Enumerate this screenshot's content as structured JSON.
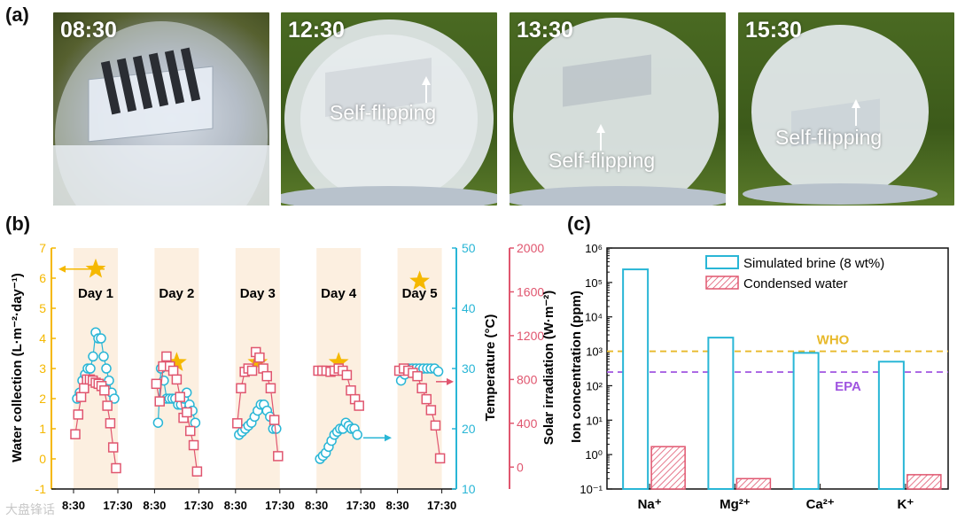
{
  "panel_labels": {
    "a": "(a)",
    "b": "(b)",
    "c": "(c)"
  },
  "photos": [
    {
      "time": "08:30",
      "flip_label": ""
    },
    {
      "time": "12:30",
      "flip_label": "Self-flipping"
    },
    {
      "time": "13:30",
      "flip_label": "Self-flipping"
    },
    {
      "time": "15:30",
      "flip_label": "Self-flipping"
    }
  ],
  "chart_data": [
    {
      "type": "scatter",
      "title": "",
      "ylabel_left": "Water collection (L·m⁻²·day⁻¹)",
      "ylabel_mid": "Temperature (°C)",
      "ylabel_right": "Solar irradiation (W·m⁻²)",
      "ylim_left": [
        -1,
        7
      ],
      "yticks_left": [
        "-1",
        "0",
        "1",
        "2",
        "3",
        "4",
        "5",
        "6",
        "7"
      ],
      "ylim_temp": [
        10,
        50
      ],
      "yticks_temp": [
        "10",
        "20",
        "30",
        "40",
        "50"
      ],
      "ylim_solar": [
        -200,
        2000
      ],
      "yticks_solar": [
        "0",
        "400",
        "800",
        "1200",
        "1600",
        "2000"
      ],
      "xtick_labels": [
        "8:30",
        "17:30",
        "8:30",
        "17:30",
        "8:30",
        "17:30",
        "8:30",
        "17:30",
        "8:30",
        "17:30"
      ],
      "colors": {
        "water": "#f5b800",
        "temp": "#29b6d6",
        "solar": "#e0566f",
        "shade": "#fcefe0"
      },
      "days": [
        {
          "label": "Day 1",
          "water": 6.3,
          "temp": [
            25,
            26,
            28,
            29,
            30,
            30,
            32,
            36,
            35,
            35,
            32,
            30,
            28,
            26,
            25
          ],
          "solar": [
            300,
            480,
            640,
            720,
            800,
            800,
            790,
            770,
            760,
            740,
            700,
            560,
            400,
            180,
            -10
          ]
        },
        {
          "label": "Day 2",
          "water": 3.2,
          "temp": [
            21,
            30,
            28,
            25,
            25,
            25,
            25,
            24,
            24,
            25,
            26,
            24,
            23,
            21
          ],
          "solar": [
            760,
            600,
            920,
            1010,
            920,
            880,
            800,
            640,
            450,
            500,
            330,
            200,
            -40
          ]
        },
        {
          "label": "Day 3",
          "water": 3.2,
          "temp": [
            19,
            19.5,
            20,
            20.5,
            21,
            22,
            23,
            24,
            24,
            23,
            22,
            20,
            20
          ],
          "solar": [
            400,
            720,
            870,
            900,
            880,
            1050,
            1000,
            900,
            830,
            720,
            430,
            100
          ]
        },
        {
          "label": "Day 4",
          "water": 3.2,
          "temp": [
            15,
            15.5,
            16,
            17,
            18,
            19,
            19.5,
            20,
            20,
            21,
            20.5,
            20,
            20,
            19
          ],
          "solar": [
            880,
            880,
            880,
            870,
            880,
            900,
            880,
            840,
            700,
            620,
            560
          ]
        },
        {
          "label": "Day 5",
          "water": 5.9,
          "temp": [
            28,
            29,
            30,
            30,
            30,
            30,
            30,
            30,
            30,
            30,
            29.5
          ],
          "solar": [
            880,
            900,
            880,
            860,
            830,
            720,
            620,
            520,
            380,
            80
          ]
        }
      ]
    },
    {
      "type": "bar",
      "ylabel": "Ion concentration (ppm)",
      "yscale": "log",
      "ylim": [
        0.1,
        1000000
      ],
      "ytick_labels": [
        "10⁻¹",
        "10⁰",
        "10¹",
        "10²",
        "10³",
        "10⁴",
        "10⁵",
        "10⁶"
      ],
      "categories": [
        "Na⁺",
        "Mg²⁺",
        "Ca²⁺",
        "K⁺"
      ],
      "series": [
        {
          "name": "Simulated brine (8 wt%)",
          "values": [
            240000,
            2500,
            900,
            500
          ],
          "color": "#29b6d6"
        },
        {
          "name": "Condensed water",
          "values": [
            1.7,
            0.2,
            0.1,
            0.26
          ],
          "color": "#e0566f"
        }
      ],
      "reference_lines": [
        {
          "name": "WHO",
          "value": 1000,
          "color": "#e8b92a"
        },
        {
          "name": "EPA",
          "value": 250,
          "color": "#a055e0"
        }
      ]
    }
  ],
  "watermark": "大盘锋话"
}
